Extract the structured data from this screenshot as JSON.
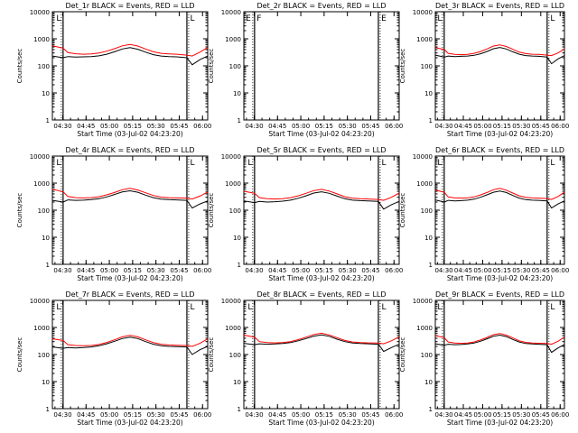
{
  "figure": {
    "background": "#ffffff",
    "axis_color": "#000000"
  },
  "shared": {
    "ylabel": "Counts/sec",
    "xlabel": "Start Time (03-Jul-02 04:23:20)",
    "x_tick_labels": [
      "04:30",
      "04:45",
      "05:00",
      "05:15",
      "05:30",
      "05:45",
      "06:00"
    ],
    "x_tick_minutes": [
      6.67,
      21.67,
      36.67,
      51.67,
      66.67,
      81.67,
      96.67
    ],
    "y_tick_labels": [
      "1",
      "10",
      "100",
      "1000",
      "10000"
    ],
    "y_tick_values": [
      1,
      10,
      100,
      1000,
      10000
    ],
    "xlim_minutes": [
      0,
      100
    ],
    "ylim": [
      1,
      10000
    ],
    "yscale": "log",
    "series_colors": {
      "black": "#000000",
      "red": "#ff0000"
    }
  },
  "chart_data": [
    {
      "type": "line",
      "title": "Det_1r BLACK = Events, RED = LLD",
      "has_data": true,
      "saa_lines_minutes": [
        6.9,
        86.6
      ],
      "gap_minutes": [
        6.9,
        86.6
      ],
      "side_labels": [
        "L",
        "L"
      ],
      "x_minutes": [
        0,
        6.9,
        10,
        15,
        20,
        25,
        30,
        35,
        40,
        45,
        50,
        55,
        60,
        65,
        70,
        75,
        80,
        86.6,
        90,
        95,
        100
      ],
      "series": [
        {
          "color": "black",
          "values": [
            230,
            200,
            220,
            210,
            215,
            220,
            235,
            270,
            330,
            420,
            470,
            410,
            320,
            260,
            230,
            220,
            215,
            200,
            110,
            170,
            230
          ]
        },
        {
          "color": "red",
          "values": [
            550,
            450,
            310,
            280,
            270,
            275,
            300,
            350,
            430,
            550,
            620,
            540,
            420,
            330,
            290,
            275,
            270,
            250,
            230,
            320,
            480
          ]
        }
      ]
    },
    {
      "type": "line",
      "title": "Det_2r BLACK = Events, RED = LLD",
      "has_data": false,
      "saa_lines_minutes": [
        6.9,
        86.6
      ],
      "side_labels": [
        "E",
        "F",
        "E"
      ],
      "x_minutes": [],
      "series": []
    },
    {
      "type": "line",
      "title": "Det_3r BLACK = Events, RED = LLD",
      "has_data": true,
      "saa_lines_minutes": [
        6.9,
        86.6
      ],
      "gap_minutes": [
        6.9,
        86.6
      ],
      "side_labels": [
        "L",
        "L"
      ],
      "x_minutes": [
        0,
        6.9,
        10,
        15,
        20,
        25,
        30,
        35,
        40,
        45,
        50,
        55,
        60,
        65,
        70,
        75,
        80,
        86.6,
        90,
        95,
        100
      ],
      "series": [
        {
          "color": "black",
          "values": [
            250,
            210,
            230,
            220,
            225,
            230,
            245,
            280,
            340,
            430,
            480,
            420,
            330,
            270,
            240,
            230,
            225,
            210,
            120,
            180,
            240
          ]
        },
        {
          "color": "red",
          "values": [
            470,
            400,
            290,
            265,
            260,
            265,
            290,
            340,
            420,
            540,
            600,
            520,
            410,
            320,
            285,
            270,
            265,
            250,
            240,
            300,
            420
          ]
        }
      ]
    },
    {
      "type": "line",
      "title": "Det_4r BLACK = Events, RED = LLD",
      "has_data": true,
      "saa_lines_minutes": [
        6.9,
        86.6
      ],
      "gap_minutes": [
        6.9,
        86.6
      ],
      "side_labels": [
        "L",
        "L"
      ],
      "x_minutes": [
        0,
        6.9,
        10,
        15,
        20,
        25,
        30,
        35,
        40,
        45,
        50,
        55,
        60,
        65,
        70,
        75,
        80,
        86.6,
        90,
        95,
        100
      ],
      "series": [
        {
          "color": "black",
          "values": [
            230,
            200,
            240,
            230,
            235,
            245,
            265,
            310,
            380,
            470,
            520,
            460,
            360,
            290,
            255,
            245,
            240,
            230,
            120,
            170,
            220
          ]
        },
        {
          "color": "red",
          "values": [
            600,
            480,
            320,
            290,
            285,
            290,
            315,
            370,
            450,
            570,
            640,
            560,
            440,
            350,
            305,
            290,
            285,
            280,
            260,
            330,
            470
          ]
        }
      ]
    },
    {
      "type": "line",
      "title": "Det_5r BLACK = Events, RED = LLD",
      "has_data": true,
      "saa_lines_minutes": [
        6.9,
        86.6
      ],
      "gap_minutes": [
        6.9,
        86.6
      ],
      "side_labels": [
        "L",
        "L"
      ],
      "x_minutes": [
        0,
        6.9,
        10,
        15,
        20,
        25,
        30,
        35,
        40,
        45,
        50,
        55,
        60,
        65,
        70,
        75,
        80,
        86.6,
        90,
        95,
        100
      ],
      "series": [
        {
          "color": "black",
          "values": [
            220,
            190,
            210,
            200,
            205,
            215,
            235,
            275,
            340,
            430,
            480,
            420,
            330,
            265,
            235,
            225,
            220,
            210,
            110,
            160,
            210
          ]
        },
        {
          "color": "red",
          "values": [
            500,
            420,
            290,
            265,
            260,
            265,
            290,
            340,
            420,
            530,
            590,
            510,
            400,
            315,
            280,
            265,
            260,
            250,
            230,
            300,
            430
          ]
        }
      ]
    },
    {
      "type": "line",
      "title": "Det_6r BLACK = Events, RED = LLD",
      "has_data": true,
      "saa_lines_minutes": [
        6.9,
        86.6
      ],
      "gap_minutes": [
        6.9,
        86.6
      ],
      "side_labels": [
        "L",
        "L"
      ],
      "x_minutes": [
        0,
        6.9,
        10,
        15,
        20,
        25,
        30,
        35,
        40,
        45,
        50,
        55,
        60,
        65,
        70,
        75,
        80,
        86.6,
        90,
        95,
        100
      ],
      "series": [
        {
          "color": "black",
          "values": [
            240,
            200,
            230,
            220,
            225,
            235,
            255,
            300,
            370,
            460,
            510,
            450,
            350,
            280,
            245,
            235,
            230,
            220,
            120,
            170,
            220
          ]
        },
        {
          "color": "red",
          "values": [
            560,
            460,
            310,
            285,
            280,
            285,
            310,
            365,
            450,
            570,
            640,
            550,
            430,
            340,
            300,
            285,
            280,
            270,
            250,
            320,
            460
          ]
        }
      ]
    },
    {
      "type": "line",
      "title": "Det_7r BLACK = Events, RED = LLD",
      "has_data": true,
      "saa_lines_minutes": [
        6.9,
        86.6
      ],
      "gap_minutes": [
        6.9,
        86.6
      ],
      "side_labels": [
        "L",
        "L"
      ],
      "x_minutes": [
        0,
        6.9,
        10,
        15,
        20,
        25,
        30,
        35,
        40,
        45,
        50,
        55,
        60,
        65,
        70,
        75,
        80,
        86.6,
        90,
        95,
        100
      ],
      "series": [
        {
          "color": "black",
          "values": [
            190,
            170,
            180,
            175,
            180,
            190,
            210,
            250,
            310,
            390,
            440,
            390,
            300,
            240,
            210,
            200,
            195,
            190,
            100,
            150,
            200
          ]
        },
        {
          "color": "red",
          "values": [
            380,
            330,
            230,
            215,
            210,
            215,
            235,
            280,
            350,
            450,
            510,
            450,
            350,
            275,
            240,
            225,
            220,
            215,
            200,
            260,
            380
          ]
        }
      ]
    },
    {
      "type": "line",
      "title": "Det_8r BLACK = Events, RED = LLD",
      "has_data": true,
      "saa_lines_minutes": [
        6.9,
        86.6
      ],
      "gap_minutes": [
        6.9,
        86.6
      ],
      "side_labels": [
        "L",
        "L"
      ],
      "x_minutes": [
        0,
        6.9,
        10,
        15,
        20,
        25,
        30,
        35,
        40,
        45,
        50,
        55,
        60,
        65,
        70,
        75,
        80,
        86.6,
        90,
        95,
        100
      ],
      "series": [
        {
          "color": "black",
          "values": [
            260,
            230,
            250,
            240,
            245,
            255,
            275,
            320,
            390,
            480,
            530,
            470,
            370,
            300,
            265,
            255,
            250,
            240,
            130,
            180,
            240
          ]
        },
        {
          "color": "red",
          "values": [
            520,
            440,
            300,
            275,
            270,
            275,
            300,
            355,
            435,
            550,
            610,
            530,
            420,
            330,
            290,
            275,
            270,
            265,
            250,
            320,
            450
          ]
        }
      ]
    },
    {
      "type": "line",
      "title": "Det_9r BLACK = Events, RED = LLD",
      "has_data": true,
      "saa_lines_minutes": [
        6.9,
        86.6
      ],
      "gap_minutes": [
        6.9,
        86.6
      ],
      "side_labels": [
        "L",
        "L"
      ],
      "x_minutes": [
        0,
        6.9,
        10,
        15,
        20,
        25,
        30,
        35,
        40,
        45,
        50,
        55,
        60,
        65,
        70,
        75,
        80,
        86.6,
        90,
        95,
        100
      ],
      "series": [
        {
          "color": "black",
          "values": [
            250,
            220,
            240,
            230,
            235,
            245,
            265,
            310,
            380,
            470,
            520,
            460,
            360,
            290,
            255,
            245,
            240,
            230,
            120,
            175,
            235
          ]
        },
        {
          "color": "red",
          "values": [
            500,
            420,
            290,
            265,
            260,
            265,
            290,
            345,
            425,
            540,
            600,
            520,
            410,
            320,
            282,
            268,
            262,
            255,
            240,
            310,
            440
          ]
        }
      ]
    }
  ]
}
